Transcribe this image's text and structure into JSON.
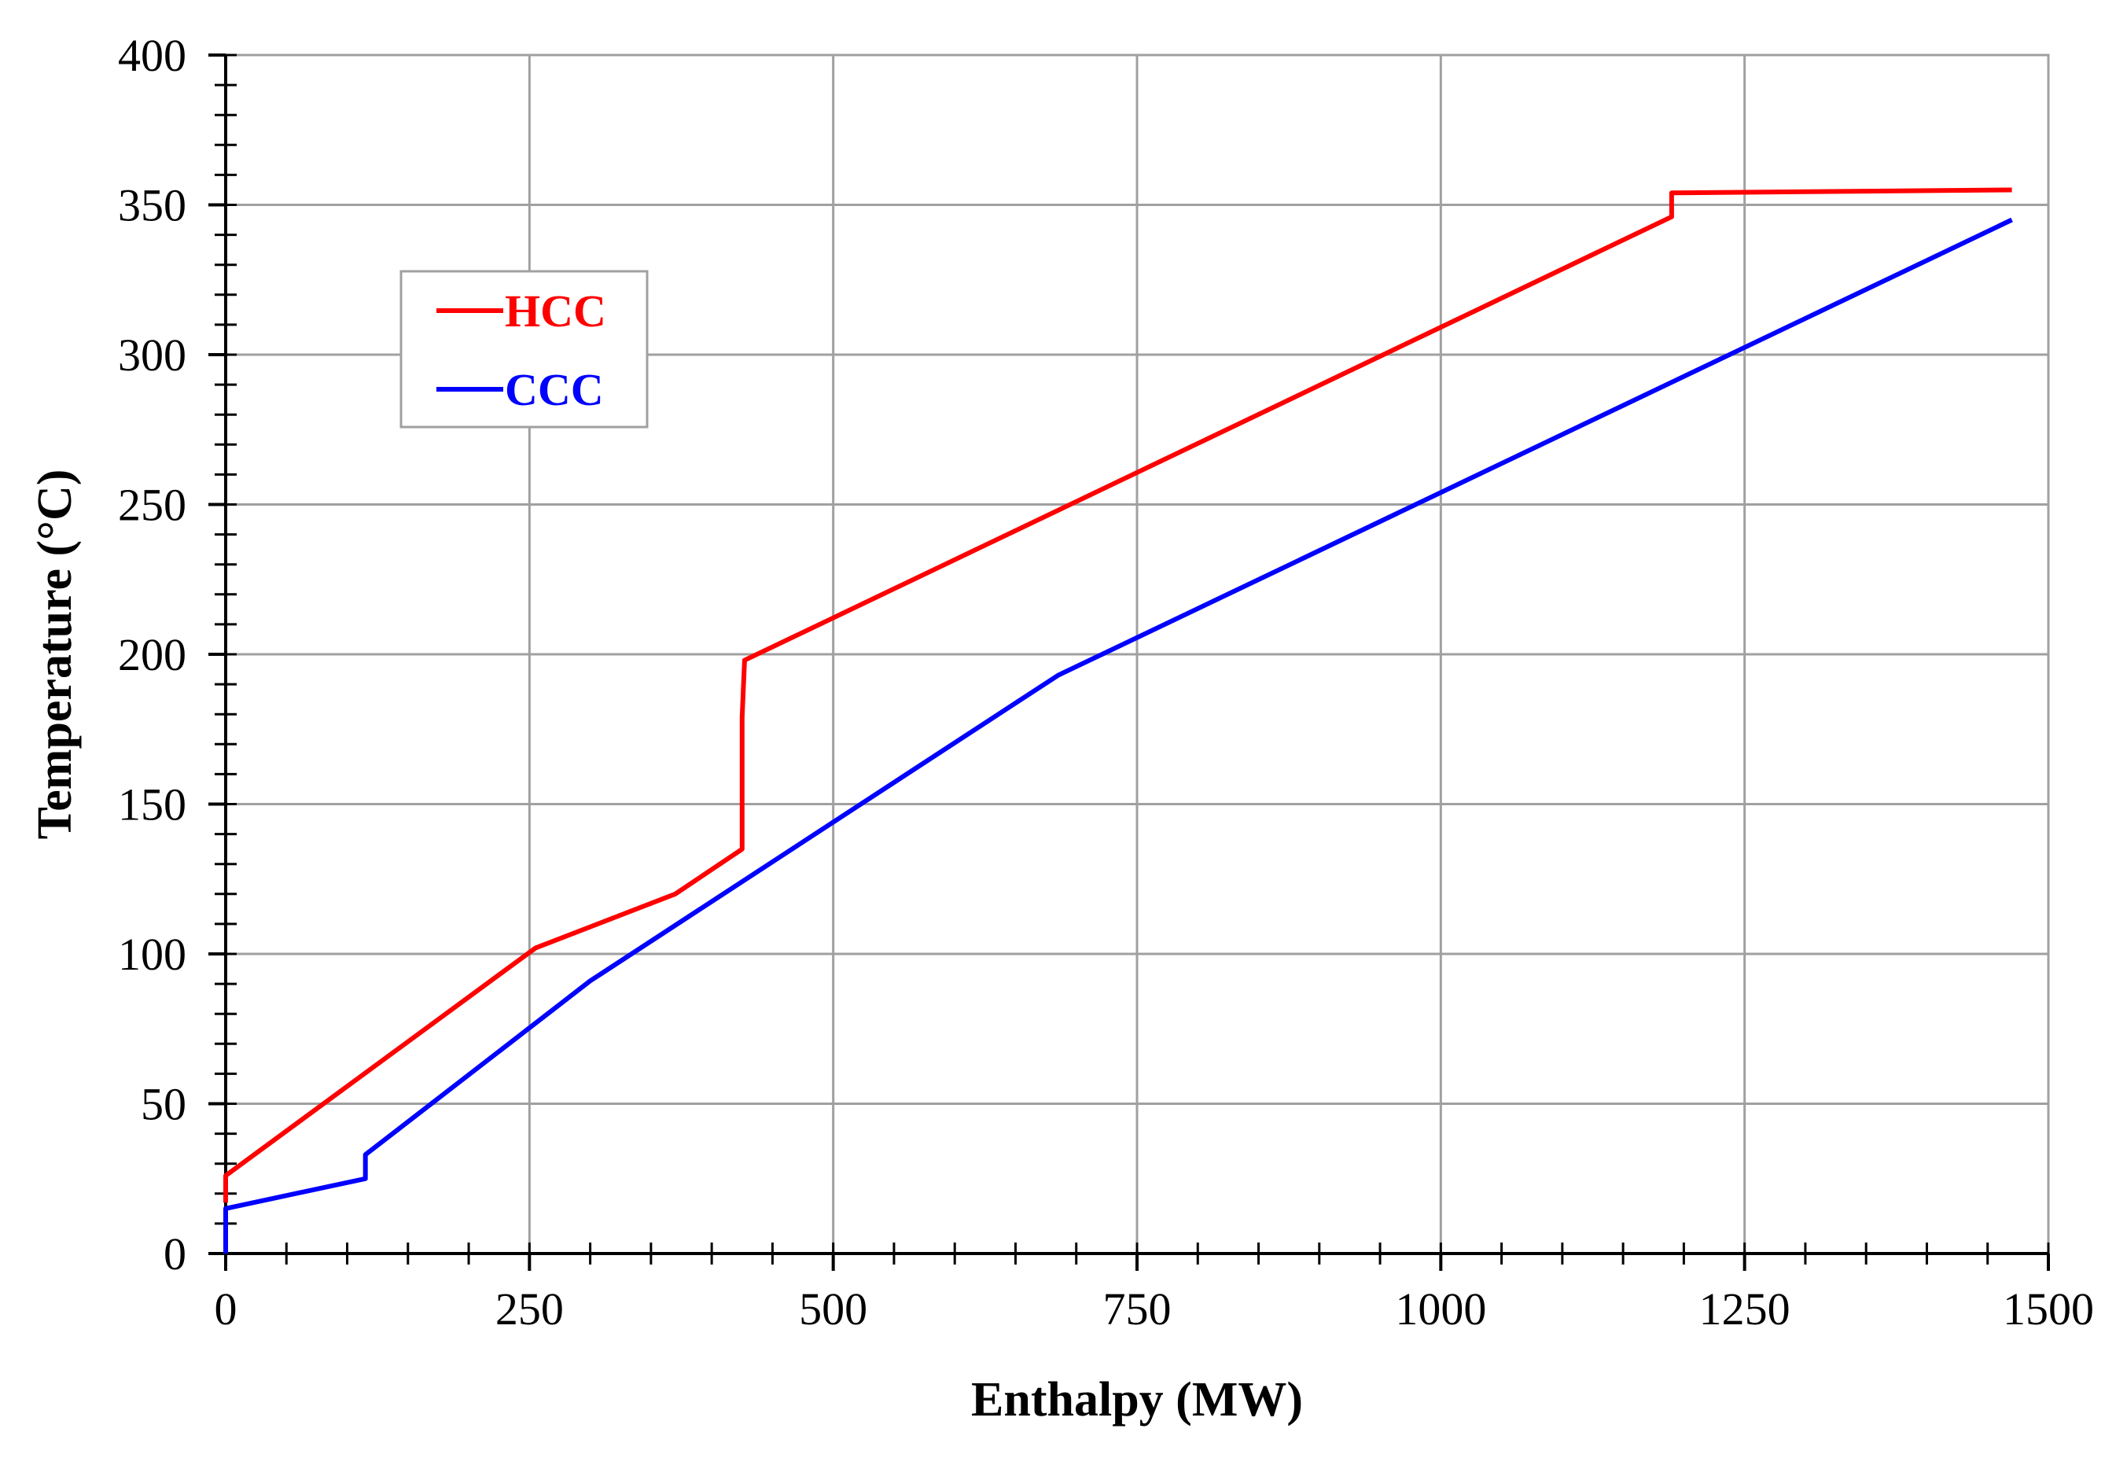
{
  "chart_data": {
    "type": "line",
    "title": "",
    "xlabel": "Enthalpy (MW)",
    "ylabel": "Temperature (°C)",
    "xlim": [
      0,
      1500
    ],
    "ylim": [
      0,
      400
    ],
    "x_ticks": [
      0,
      250,
      500,
      750,
      1000,
      1250,
      1500
    ],
    "y_ticks": [
      0,
      50,
      100,
      150,
      200,
      250,
      300,
      350,
      400
    ],
    "grid": true,
    "legend_position": "upper-left",
    "series": [
      {
        "name": "HCC",
        "color": "#ff0000",
        "points": [
          [
            0,
            17
          ],
          [
            0,
            26
          ],
          [
            255,
            102
          ],
          [
            370,
            120
          ],
          [
            425,
            135
          ],
          [
            425,
            179
          ],
          [
            427,
            198
          ],
          [
            1190,
            346
          ],
          [
            1190,
            354
          ],
          [
            1470,
            355
          ]
        ]
      },
      {
        "name": "CCC",
        "color": "#0000ff",
        "points": [
          [
            0,
            0
          ],
          [
            0,
            15
          ],
          [
            115,
            25
          ],
          [
            115,
            33
          ],
          [
            300,
            91
          ],
          [
            685,
            193
          ],
          [
            1470,
            345
          ]
        ]
      }
    ]
  }
}
